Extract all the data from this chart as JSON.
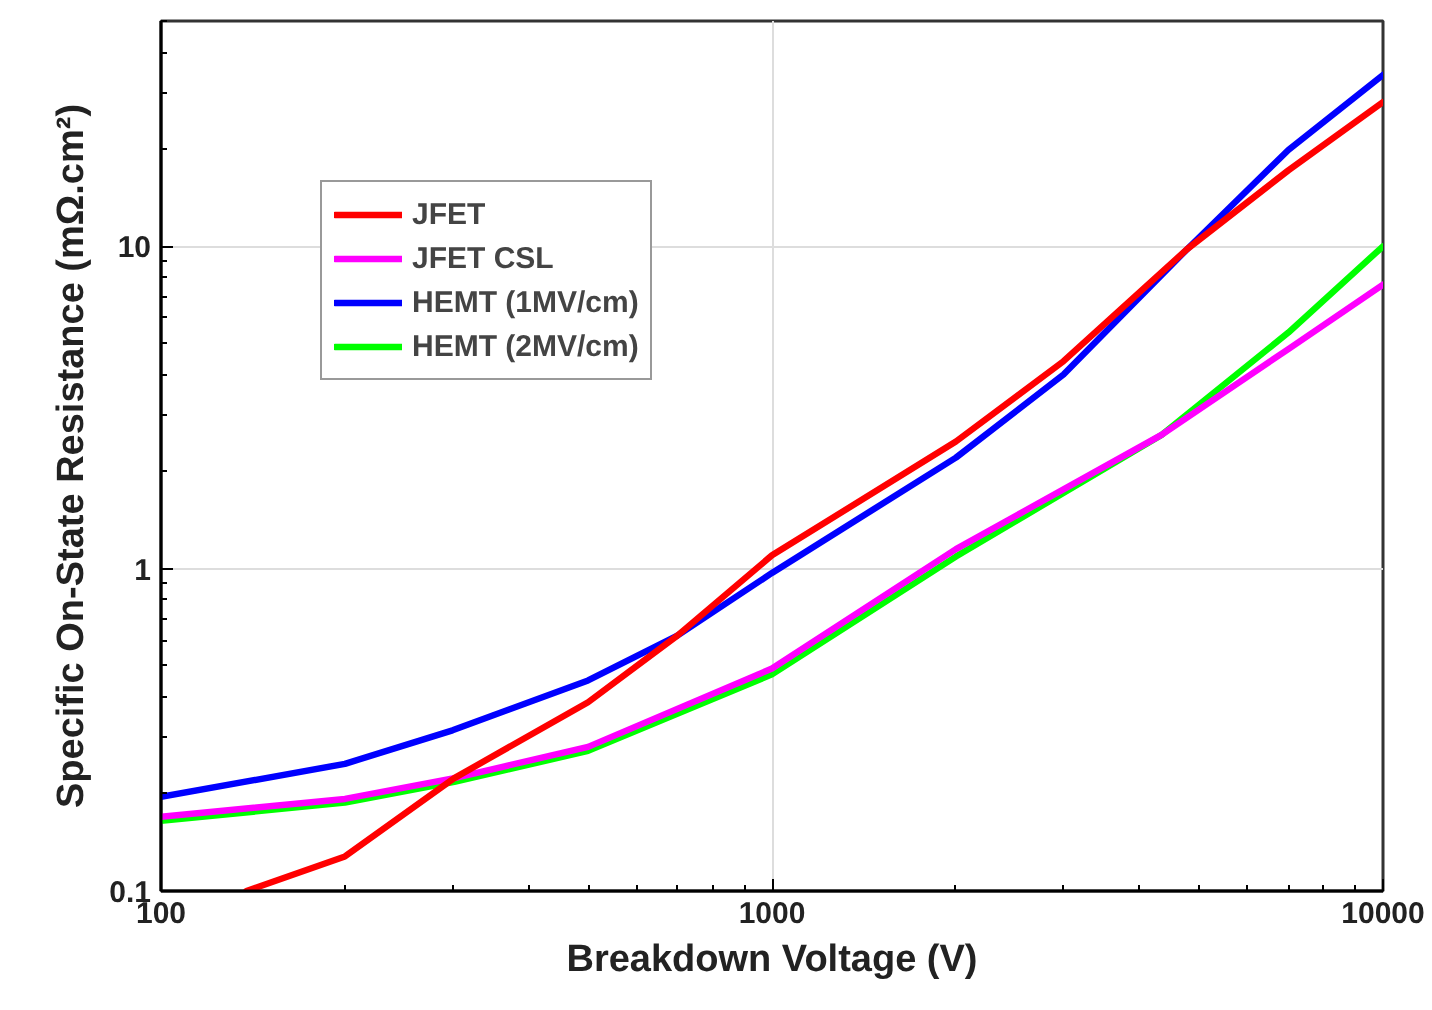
{
  "chart_data": {
    "type": "line",
    "xlabel": "Breakdown Voltage (V)",
    "ylabel": "Specific On-State Resistance (mΩ.cm²)",
    "log": "xy",
    "grid": true,
    "legend": "top left",
    "marker": "none",
    "line_style": "solid",
    "xlim": [
      100,
      10000
    ],
    "ylim": [
      0.1,
      50
    ],
    "xticks": [
      100,
      1000,
      10000
    ],
    "yticks": [
      0.1,
      1,
      10
    ],
    "series": [
      {
        "name": "JFET",
        "color": "#ff0000",
        "x": [
          138,
          200,
          302,
          500,
          700,
          1000,
          2000,
          3000,
          4780,
          7000,
          10000
        ],
        "values": [
          0.1,
          0.128,
          0.224,
          0.385,
          0.62,
          1.1,
          2.48,
          4.4,
          9.8,
          17.2,
          28
        ]
      },
      {
        "name": "JFET CSL",
        "color": "#ff00ff",
        "x": [
          100,
          200,
          302,
          500,
          1000,
          2000,
          4340,
          7000,
          10000
        ],
        "values": [
          0.17,
          0.193,
          0.224,
          0.28,
          0.49,
          1.15,
          2.6,
          4.8,
          7.6
        ]
      },
      {
        "name": "HEMT (1MV/cm)",
        "color": "#0000ff",
        "x": [
          100,
          200,
          300,
          500,
          700,
          1000,
          2000,
          3000,
          4780,
          7000,
          10000
        ],
        "values": [
          0.196,
          0.248,
          0.315,
          0.45,
          0.62,
          0.97,
          2.21,
          4.0,
          9.8,
          19.9,
          34
        ]
      },
      {
        "name": "HEMT (2MV/cm)",
        "color": "#00ff00",
        "x": [
          100,
          200,
          302,
          500,
          1000,
          2000,
          4340,
          7000,
          10000
        ],
        "values": [
          0.165,
          0.188,
          0.218,
          0.272,
          0.47,
          1.09,
          2.6,
          5.4,
          10
        ]
      }
    ]
  }
}
